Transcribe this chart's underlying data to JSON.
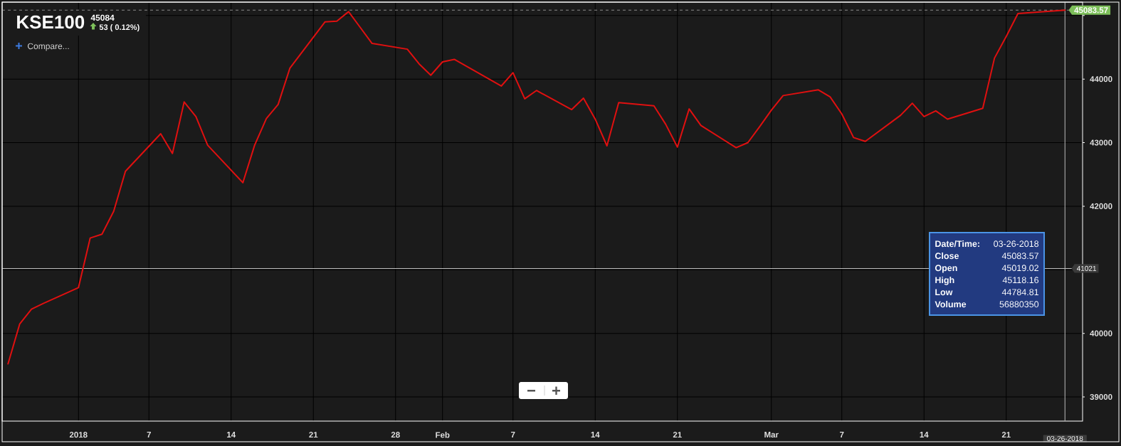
{
  "chart_data": {
    "type": "line",
    "title": "KSE100",
    "annotations": [
      "45084",
      "53 ( 0.12%)",
      "Compare...",
      "Date/Time:",
      "03-26-2018",
      "Close",
      "45083.57",
      "Open",
      "45019.02",
      "High",
      "45118.16",
      "Low",
      "44784.81",
      "Volume",
      "56880350"
    ],
    "x": [
      "2017-12-26",
      "2017-12-27",
      "2017-12-28",
      "2017-12-29",
      "2018-01-01",
      "2018-01-02",
      "2018-01-03",
      "2018-01-04",
      "2018-01-05",
      "2018-01-08",
      "2018-01-09",
      "2018-01-10",
      "2018-01-11",
      "2018-01-12",
      "2018-01-15",
      "2018-01-16",
      "2018-01-17",
      "2018-01-18",
      "2018-01-19",
      "2018-01-22",
      "2018-01-23",
      "2018-01-24",
      "2018-01-25",
      "2018-01-26",
      "2018-01-29",
      "2018-01-30",
      "2018-01-31",
      "2018-02-01",
      "2018-02-02",
      "2018-02-06",
      "2018-02-07",
      "2018-02-08",
      "2018-02-09",
      "2018-02-12",
      "2018-02-13",
      "2018-02-14",
      "2018-02-15",
      "2018-02-16",
      "2018-02-19",
      "2018-02-20",
      "2018-02-21",
      "2018-02-22",
      "2018-02-23",
      "2018-02-26",
      "2018-02-27",
      "2018-02-28",
      "2018-03-01",
      "2018-03-02",
      "2018-03-05",
      "2018-03-06",
      "2018-03-07",
      "2018-03-08",
      "2018-03-09",
      "2018-03-12",
      "2018-03-13",
      "2018-03-14",
      "2018-03-15",
      "2018-03-16",
      "2018-03-19",
      "2018-03-20",
      "2018-03-21",
      "2018-03-22",
      "2018-03-26"
    ],
    "values": [
      39520,
      40150,
      40380,
      40470,
      40720,
      41500,
      41560,
      41920,
      42550,
      43140,
      42830,
      43640,
      43410,
      42960,
      42370,
      42960,
      43380,
      43600,
      44170,
      44900,
      44910,
      45060,
      44810,
      44560,
      44470,
      44240,
      44060,
      44270,
      44310,
      43890,
      44100,
      43690,
      43820,
      43520,
      43700,
      43370,
      42950,
      43630,
      43580,
      43290,
      42930,
      43530,
      43270,
      42920,
      43000,
      43250,
      43510,
      43740,
      43830,
      43720,
      43450,
      43080,
      43020,
      43430,
      43620,
      43410,
      43500,
      43370,
      43540,
      44330,
      44670,
      45030,
      45083.57
    ],
    "color": "#e01010",
    "xlim": [
      "2017-12-25T12:00",
      "2018-03-27T12:00"
    ],
    "ylim": [
      38620,
      45210
    ],
    "xticks": [
      {
        "value": "2018-01-01",
        "label": "2018"
      },
      {
        "value": "2018-01-07",
        "label": "7"
      },
      {
        "value": "2018-01-14",
        "label": "14"
      },
      {
        "value": "2018-01-21",
        "label": "21"
      },
      {
        "value": "2018-01-28",
        "label": "28"
      },
      {
        "value": "2018-02-01",
        "label": "Feb"
      },
      {
        "value": "2018-02-07",
        "label": "7"
      },
      {
        "value": "2018-02-14",
        "label": "14"
      },
      {
        "value": "2018-02-21",
        "label": "21"
      },
      {
        "value": "2018-03-01",
        "label": "Mar"
      },
      {
        "value": "2018-03-07",
        "label": "7"
      },
      {
        "value": "2018-03-14",
        "label": "14"
      },
      {
        "value": "2018-03-21",
        "label": "21"
      }
    ],
    "yticks": [
      39000,
      40000,
      {
        "value": 41000,
        "label": null
      },
      42000,
      43000,
      44000,
      {
        "value": 45000,
        "label": null
      }
    ],
    "grid": true,
    "ref_lines": [
      {
        "axis": "y",
        "value": 45083.57,
        "label": "45083.57",
        "color": "#8a8a8a",
        "line_style": "dashed"
      },
      {
        "axis": "y",
        "value": 41021,
        "label": "41021",
        "color": "#bdbdbd"
      },
      {
        "axis": "x",
        "value": "2018-03-26",
        "label": "03-26-2018",
        "color": "#bdbdbd"
      }
    ]
  }
}
